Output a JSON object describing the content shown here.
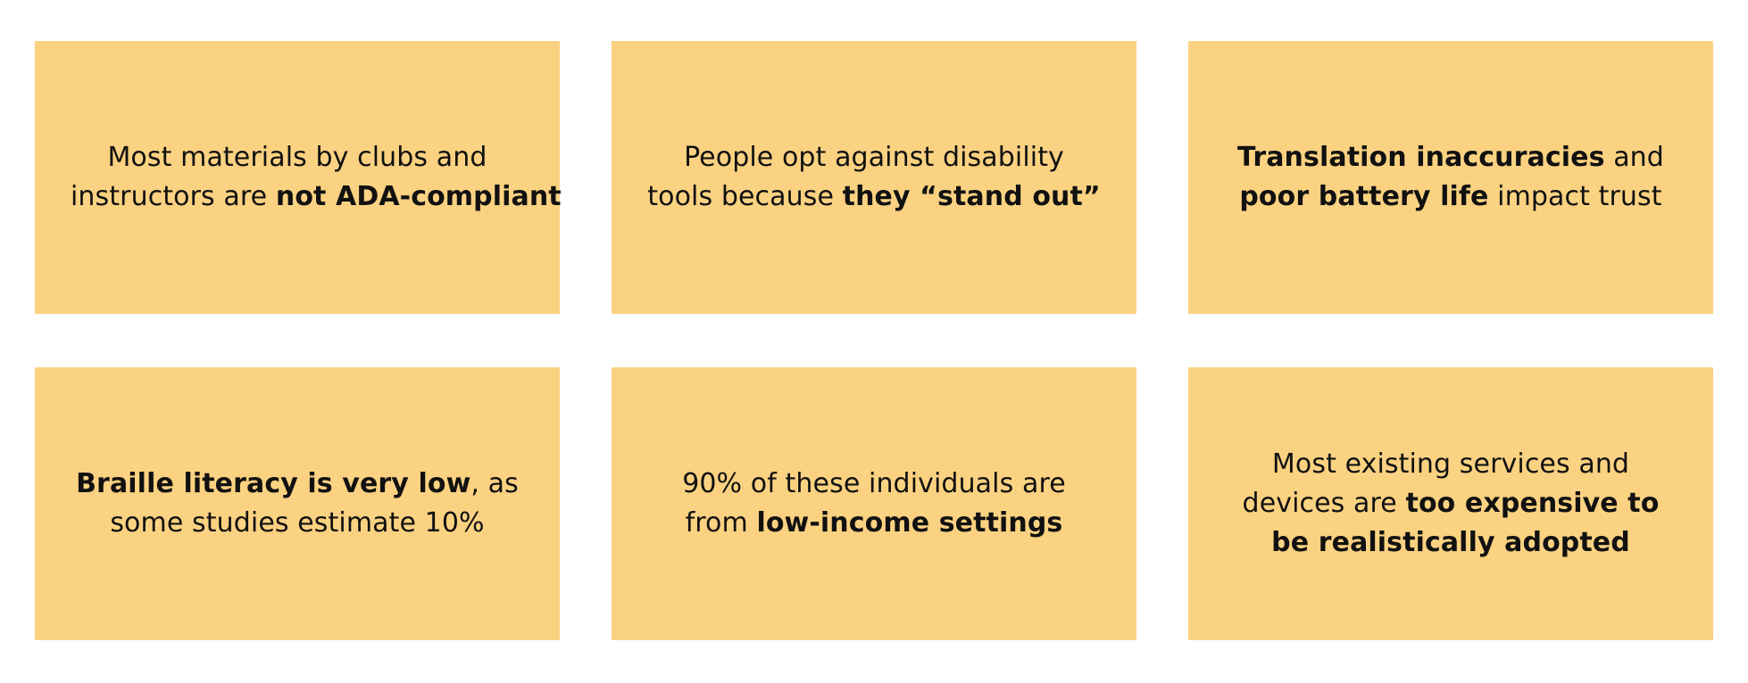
{
  "cards": [
    {
      "lines": [
        {
          "a": "Most materials by clubs and",
          "b": "",
          "c": ""
        },
        {
          "a": "instructors are ",
          "b": "not ADA-compliant",
          "c": ""
        }
      ]
    },
    {
      "lines": [
        {
          "a": "People opt against disability",
          "b": "",
          "c": ""
        },
        {
          "a": "tools because ",
          "b": "they “stand out”",
          "c": ""
        }
      ]
    },
    {
      "lines": [
        {
          "a": "",
          "b": "Translation inaccuracies",
          "c": " and"
        },
        {
          "a": "",
          "b": "poor battery life",
          "c": " impact trust"
        }
      ]
    },
    {
      "lines": [
        {
          "a": "",
          "b": "Braille literacy is very low",
          "c": ", as"
        },
        {
          "a": "some studies estimate 10%",
          "b": "",
          "c": ""
        }
      ]
    },
    {
      "lines": [
        {
          "a": "90% of these individuals are",
          "b": "",
          "c": ""
        },
        {
          "a": "from ",
          "b": "low-income settings",
          "c": ""
        }
      ]
    },
    {
      "lines": [
        {
          "a": "Most existing services and",
          "b": "",
          "c": ""
        },
        {
          "a": "devices are ",
          "b": "too expensive to",
          "c": ""
        },
        {
          "a": "",
          "b": "be realistically adopted",
          "c": ""
        }
      ]
    }
  ],
  "colors": {
    "card_background": "#fbd281",
    "text": "#111111",
    "page_background": "#ffffff"
  }
}
